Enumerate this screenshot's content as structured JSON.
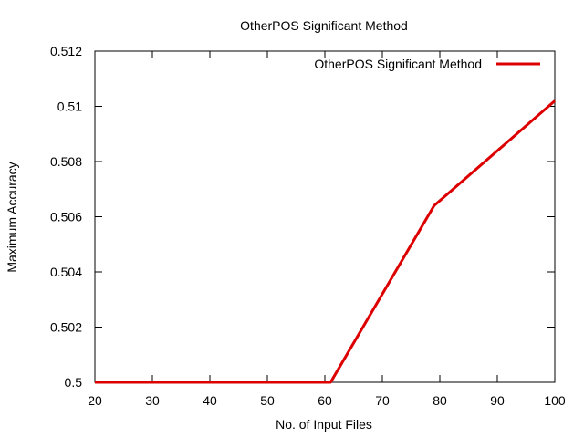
{
  "chart_data": {
    "type": "line",
    "title": "OtherPOS Significant Method",
    "xlabel": "No. of Input Files",
    "ylabel": "Maximum Accuracy",
    "xlim": [
      20,
      100
    ],
    "ylim": [
      0.5,
      0.512
    ],
    "x_ticks": [
      20,
      30,
      40,
      50,
      60,
      70,
      80,
      90,
      100
    ],
    "y_ticks": [
      0.5,
      0.502,
      0.504,
      0.506,
      0.508,
      0.51,
      0.512
    ],
    "x_tick_labels": [
      "20",
      "30",
      "40",
      "50",
      "60",
      "70",
      "80",
      "90",
      "100"
    ],
    "y_tick_labels": [
      "0.5",
      "0.502",
      "0.504",
      "0.506",
      "0.508",
      "0.51",
      "0.512"
    ],
    "grid": false,
    "legend_position": "top-right",
    "series": [
      {
        "name": "OtherPOS Significant Method",
        "color": "#dd0000",
        "x": [
          20,
          30,
          40,
          50,
          60,
          61,
          79,
          100
        ],
        "y": [
          0.5,
          0.5,
          0.5,
          0.5,
          0.5,
          0.5,
          0.5064,
          0.5102
        ]
      }
    ]
  }
}
